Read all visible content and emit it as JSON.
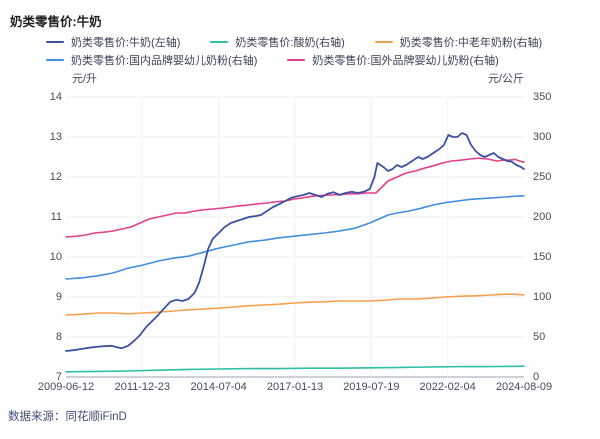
{
  "title": "奶类零售价:牛奶",
  "source": "数据来源：同花顺iFinD",
  "chart_data": {
    "type": "line",
    "title": "奶类零售价:牛奶",
    "grid": true,
    "legend_position": "top",
    "left_axis": {
      "unit": "元/升",
      "ticks": [
        14,
        13,
        12,
        11,
        10,
        9,
        8,
        7
      ],
      "range": [
        7,
        14
      ]
    },
    "right_axis": {
      "unit": "元/公斤",
      "ticks": [
        350,
        300,
        250,
        200,
        150,
        100,
        50,
        0
      ],
      "range": [
        0,
        350
      ]
    },
    "x_axis": {
      "tick_labels": [
        "2009-06-12",
        "2011-12-23",
        "2014-07-04",
        "2017-01-13",
        "2019-07-19",
        "2022-02-04",
        "2024-08-09"
      ],
      "range_years": [
        2009.45,
        2024.6
      ]
    },
    "series": [
      {
        "name": "奶类零售价:牛奶(左轴)",
        "axis": "left",
        "unit": "元/升",
        "color": "#3d51a3",
        "points": [
          [
            2009.45,
            7.65
          ],
          [
            2009.8,
            7.68
          ],
          [
            2010.1,
            7.72
          ],
          [
            2010.4,
            7.75
          ],
          [
            2010.7,
            7.77
          ],
          [
            2010.95,
            7.78
          ],
          [
            2011.15,
            7.74
          ],
          [
            2011.3,
            7.72
          ],
          [
            2011.5,
            7.78
          ],
          [
            2011.7,
            7.9
          ],
          [
            2011.9,
            8.05
          ],
          [
            2012.1,
            8.25
          ],
          [
            2012.3,
            8.4
          ],
          [
            2012.5,
            8.55
          ],
          [
            2012.7,
            8.72
          ],
          [
            2012.9,
            8.88
          ],
          [
            2013.1,
            8.93
          ],
          [
            2013.3,
            8.9
          ],
          [
            2013.5,
            8.95
          ],
          [
            2013.7,
            9.1
          ],
          [
            2013.85,
            9.35
          ],
          [
            2014.0,
            9.75
          ],
          [
            2014.15,
            10.2
          ],
          [
            2014.3,
            10.45
          ],
          [
            2014.5,
            10.6
          ],
          [
            2014.7,
            10.75
          ],
          [
            2014.9,
            10.85
          ],
          [
            2015.1,
            10.9
          ],
          [
            2015.3,
            10.95
          ],
          [
            2015.5,
            11.0
          ],
          [
            2015.7,
            11.02
          ],
          [
            2015.9,
            11.05
          ],
          [
            2016.1,
            11.15
          ],
          [
            2016.3,
            11.25
          ],
          [
            2016.5,
            11.32
          ],
          [
            2016.7,
            11.4
          ],
          [
            2016.9,
            11.48
          ],
          [
            2017.1,
            11.52
          ],
          [
            2017.3,
            11.55
          ],
          [
            2017.5,
            11.6
          ],
          [
            2017.7,
            11.55
          ],
          [
            2017.9,
            11.5
          ],
          [
            2018.1,
            11.58
          ],
          [
            2018.3,
            11.62
          ],
          [
            2018.5,
            11.55
          ],
          [
            2018.7,
            11.6
          ],
          [
            2018.9,
            11.63
          ],
          [
            2019.1,
            11.6
          ],
          [
            2019.3,
            11.63
          ],
          [
            2019.5,
            11.7
          ],
          [
            2019.65,
            12.0
          ],
          [
            2019.75,
            12.35
          ],
          [
            2019.85,
            12.3
          ],
          [
            2019.95,
            12.25
          ],
          [
            2020.1,
            12.15
          ],
          [
            2020.25,
            12.2
          ],
          [
            2020.4,
            12.3
          ],
          [
            2020.55,
            12.25
          ],
          [
            2020.7,
            12.3
          ],
          [
            2020.9,
            12.4
          ],
          [
            2021.1,
            12.5
          ],
          [
            2021.25,
            12.45
          ],
          [
            2021.4,
            12.5
          ],
          [
            2021.6,
            12.6
          ],
          [
            2021.8,
            12.7
          ],
          [
            2021.95,
            12.8
          ],
          [
            2022.1,
            13.05
          ],
          [
            2022.25,
            13.0
          ],
          [
            2022.4,
            13.0
          ],
          [
            2022.55,
            13.1
          ],
          [
            2022.7,
            13.05
          ],
          [
            2022.85,
            12.8
          ],
          [
            2023.0,
            12.65
          ],
          [
            2023.15,
            12.55
          ],
          [
            2023.3,
            12.5
          ],
          [
            2023.45,
            12.55
          ],
          [
            2023.6,
            12.6
          ],
          [
            2023.75,
            12.5
          ],
          [
            2023.9,
            12.45
          ],
          [
            2024.05,
            12.4
          ],
          [
            2024.2,
            12.38
          ],
          [
            2024.35,
            12.3
          ],
          [
            2024.5,
            12.25
          ],
          [
            2024.6,
            12.2
          ]
        ]
      },
      {
        "name": "奶类零售价:酸奶(右轴)",
        "axis": "right",
        "unit": "元/公斤",
        "color": "#2ebfa5",
        "points": [
          [
            2009.45,
            6.5
          ],
          [
            2010.5,
            7
          ],
          [
            2011.5,
            7.5
          ],
          [
            2012.5,
            8.5
          ],
          [
            2013.5,
            9.5
          ],
          [
            2014.5,
            10
          ],
          [
            2015.5,
            10.5
          ],
          [
            2016.5,
            10.5
          ],
          [
            2017.5,
            11
          ],
          [
            2018.5,
            11
          ],
          [
            2019.5,
            11.5
          ],
          [
            2020.5,
            12
          ],
          [
            2021.5,
            12.5
          ],
          [
            2022.5,
            13
          ],
          [
            2023.5,
            13
          ],
          [
            2024.6,
            13.5
          ]
        ]
      },
      {
        "name": "奶类零售价:中老年奶粉(右轴)",
        "axis": "right",
        "unit": "元/公斤",
        "color": "#f7a04c",
        "points": [
          [
            2009.45,
            77.5
          ],
          [
            2010.0,
            78.5
          ],
          [
            2010.5,
            80
          ],
          [
            2011.0,
            80
          ],
          [
            2011.5,
            79
          ],
          [
            2012.0,
            80
          ],
          [
            2012.5,
            81
          ],
          [
            2013.0,
            82.5
          ],
          [
            2013.5,
            84
          ],
          [
            2014.0,
            85
          ],
          [
            2014.5,
            86
          ],
          [
            2015.0,
            87.5
          ],
          [
            2015.5,
            89
          ],
          [
            2016.0,
            90
          ],
          [
            2016.5,
            91
          ],
          [
            2017.0,
            92.5
          ],
          [
            2017.5,
            93.5
          ],
          [
            2018.0,
            94
          ],
          [
            2018.5,
            95
          ],
          [
            2019.0,
            95
          ],
          [
            2019.5,
            95
          ],
          [
            2020.0,
            96
          ],
          [
            2020.5,
            97.5
          ],
          [
            2021.0,
            97.5
          ],
          [
            2021.5,
            98.5
          ],
          [
            2022.0,
            100
          ],
          [
            2022.5,
            101
          ],
          [
            2023.0,
            101.5
          ],
          [
            2023.5,
            102.5
          ],
          [
            2024.0,
            103.5
          ],
          [
            2024.3,
            103.5
          ],
          [
            2024.6,
            102.5
          ]
        ]
      },
      {
        "name": "奶类零售价:国内品牌婴幼儿奶粉(右轴)",
        "axis": "right",
        "unit": "元/公斤",
        "color": "#418fde",
        "points": [
          [
            2009.45,
            122.5
          ],
          [
            2010.0,
            124
          ],
          [
            2010.5,
            126.5
          ],
          [
            2011.0,
            130
          ],
          [
            2011.5,
            136
          ],
          [
            2012.0,
            140
          ],
          [
            2012.5,
            145
          ],
          [
            2013.0,
            148.5
          ],
          [
            2013.5,
            151
          ],
          [
            2014.0,
            156
          ],
          [
            2014.5,
            161
          ],
          [
            2015.0,
            165
          ],
          [
            2015.5,
            169
          ],
          [
            2016.0,
            171
          ],
          [
            2016.5,
            174
          ],
          [
            2017.0,
            176
          ],
          [
            2017.5,
            178
          ],
          [
            2018.0,
            180
          ],
          [
            2018.5,
            182.5
          ],
          [
            2019.0,
            186
          ],
          [
            2019.5,
            192.5
          ],
          [
            2019.8,
            197.5
          ],
          [
            2020.1,
            202.5
          ],
          [
            2020.4,
            205
          ],
          [
            2020.8,
            207.5
          ],
          [
            2021.2,
            211
          ],
          [
            2021.6,
            215
          ],
          [
            2022.0,
            218
          ],
          [
            2022.4,
            220
          ],
          [
            2022.8,
            222
          ],
          [
            2023.2,
            223
          ],
          [
            2023.6,
            224
          ],
          [
            2024.0,
            225
          ],
          [
            2024.3,
            226
          ],
          [
            2024.6,
            226.5
          ]
        ]
      },
      {
        "name": "奶类零售价:国外品牌婴幼儿奶粉(右轴)",
        "axis": "right",
        "unit": "元/公斤",
        "color": "#e5418a",
        "points": [
          [
            2009.45,
            175
          ],
          [
            2009.8,
            176
          ],
          [
            2010.1,
            177.5
          ],
          [
            2010.4,
            180
          ],
          [
            2010.7,
            181
          ],
          [
            2011.0,
            182.5
          ],
          [
            2011.3,
            185
          ],
          [
            2011.6,
            187.5
          ],
          [
            2011.9,
            192.5
          ],
          [
            2012.2,
            197.5
          ],
          [
            2012.5,
            200
          ],
          [
            2012.8,
            202.5
          ],
          [
            2013.1,
            205
          ],
          [
            2013.4,
            205
          ],
          [
            2013.7,
            207.5
          ],
          [
            2014.0,
            209
          ],
          [
            2014.3,
            210
          ],
          [
            2014.6,
            211
          ],
          [
            2014.9,
            212.5
          ],
          [
            2015.2,
            214
          ],
          [
            2015.5,
            215
          ],
          [
            2015.8,
            216.5
          ],
          [
            2016.1,
            217.5
          ],
          [
            2016.4,
            219
          ],
          [
            2016.7,
            220
          ],
          [
            2017.0,
            222.5
          ],
          [
            2017.3,
            224
          ],
          [
            2017.6,
            226
          ],
          [
            2017.9,
            227
          ],
          [
            2018.2,
            227.5
          ],
          [
            2018.5,
            228
          ],
          [
            2018.8,
            229
          ],
          [
            2019.1,
            229
          ],
          [
            2019.4,
            230
          ],
          [
            2019.7,
            230
          ],
          [
            2019.9,
            237.5
          ],
          [
            2020.1,
            245
          ],
          [
            2020.4,
            250
          ],
          [
            2020.7,
            255
          ],
          [
            2021.0,
            257.5
          ],
          [
            2021.3,
            261
          ],
          [
            2021.6,
            264
          ],
          [
            2021.9,
            267.5
          ],
          [
            2022.2,
            270
          ],
          [
            2022.5,
            271
          ],
          [
            2022.8,
            272.5
          ],
          [
            2023.1,
            273.5
          ],
          [
            2023.4,
            272.5
          ],
          [
            2023.7,
            270
          ],
          [
            2023.9,
            271
          ],
          [
            2024.1,
            271
          ],
          [
            2024.3,
            272
          ],
          [
            2024.45,
            270
          ],
          [
            2024.6,
            268.5
          ]
        ]
      }
    ]
  }
}
